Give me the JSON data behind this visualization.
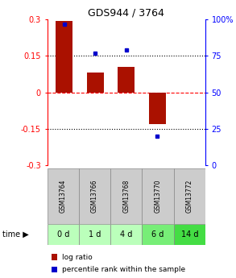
{
  "title": "GDS944 / 3764",
  "samples": [
    "GSM13764",
    "GSM13766",
    "GSM13768",
    "GSM13770",
    "GSM13772"
  ],
  "time_labels": [
    "0 d",
    "1 d",
    "4 d",
    "6 d",
    "14 d"
  ],
  "log_ratios": [
    0.293,
    0.082,
    0.105,
    -0.13,
    0.0
  ],
  "percentile_ranks": [
    97.0,
    77.0,
    79.0,
    20.0,
    null
  ],
  "bar_color": "#aa1100",
  "dot_color": "#0000cc",
  "ylim_left": [
    -0.3,
    0.3
  ],
  "ylim_right": [
    0,
    100
  ],
  "yticks_left": [
    -0.3,
    -0.15,
    0,
    0.15,
    0.3
  ],
  "ytick_labels_left": [
    "-0.3",
    "-0.15",
    "0",
    "0.15",
    "0.3"
  ],
  "ytick_labels_right": [
    "0",
    "25",
    "50",
    "75",
    "100%"
  ],
  "sample_label_bg": "#cccccc",
  "time_bg_colors": [
    "#bbffbb",
    "#bbffbb",
    "#bbffbb",
    "#77ee77",
    "#44dd44"
  ],
  "figsize": [
    2.93,
    3.45
  ],
  "dpi": 100
}
